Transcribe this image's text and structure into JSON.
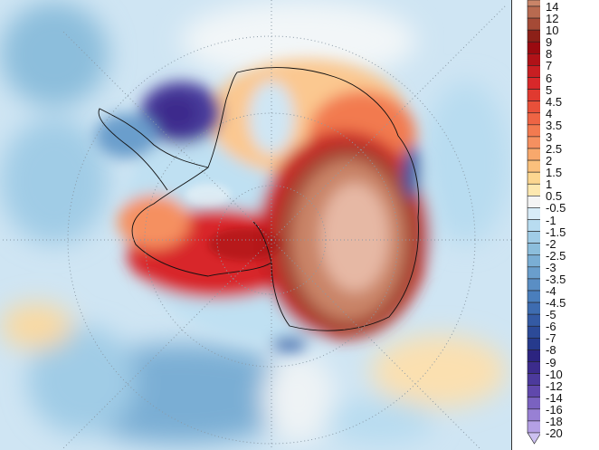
{
  "colorbar": {
    "labels": [
      "14",
      "12",
      "10",
      "9",
      "8",
      "7",
      "6",
      "5",
      "4.5",
      "4",
      "3.5",
      "3",
      "2.5",
      "2",
      "1.5",
      "1",
      "0.5",
      "-0.5",
      "-1",
      "-1.5",
      "-2",
      "-2.5",
      "-3",
      "-3.5",
      "-4",
      "-4.5",
      "-5",
      "-6",
      "-7",
      "-8",
      "-9",
      "-10",
      "-12",
      "-14",
      "-16",
      "-18",
      "-20"
    ],
    "colors": [
      "#c98468",
      "#b86a50",
      "#a54a36",
      "#8c2018",
      "#9a0a10",
      "#b01218",
      "#c81e22",
      "#d8282a",
      "#e03a30",
      "#e8503a",
      "#ee6444",
      "#f27a50",
      "#f59060",
      "#f8a86c",
      "#fac07c",
      "#fcd690",
      "#fde8b0",
      "#f4f4f4",
      "#d8ecf8",
      "#b8dcf0",
      "#a0cce6",
      "#8cbedc",
      "#7aaed4",
      "#6a9ecc",
      "#5a8ec4",
      "#4a7ebc",
      "#3e6cb0",
      "#345aa4",
      "#2c4a98",
      "#263a8c",
      "#2c2480",
      "#3c2c8c",
      "#4c3a9c",
      "#6048ac",
      "#7a62c0",
      "#9880d4",
      "#b4a0e4"
    ],
    "under_color": "#ccc0f0",
    "extend": "min"
  },
  "map": {
    "projection": "south-polar-stereographic",
    "region": "Antarctica",
    "graticule": "dotted",
    "coastlines": true
  }
}
